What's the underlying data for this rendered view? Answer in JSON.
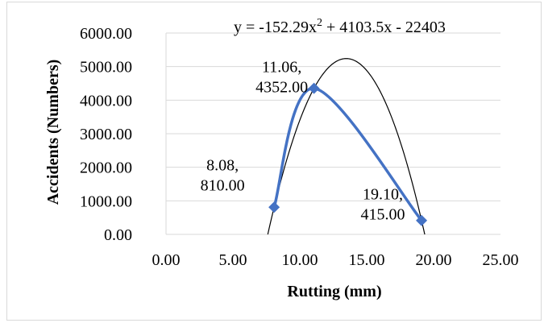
{
  "chart_data": {
    "type": "scatter",
    "title": "",
    "xlabel": "Rutting (mm)",
    "ylabel": "Accidents (Numbers)",
    "xlim": [
      0,
      25
    ],
    "ylim": [
      0,
      6000
    ],
    "x_ticks": [
      "0.00",
      "5.00",
      "10.00",
      "15.00",
      "20.00",
      "25.00"
    ],
    "y_ticks": [
      "0.00",
      "1000.00",
      "2000.00",
      "3000.00",
      "4000.00",
      "5000.00",
      "6000.00"
    ],
    "grid": "horizontal",
    "legend": "none",
    "series": [
      {
        "x": [
          8.08,
          11.06,
          19.1
        ],
        "y": [
          810.0,
          4352.0,
          415.0
        ],
        "marker": "diamond",
        "line": "smooth",
        "color": "#4472c4",
        "data_labels": [
          [
            "8.08,",
            "810.00"
          ],
          [
            "11.06,",
            "4352.00"
          ],
          [
            "19.10,",
            "415.00"
          ]
        ]
      }
    ],
    "trendline": {
      "type": "polynomial",
      "order": 2,
      "coefficients": [
        -152.29,
        4103.5,
        -22403
      ],
      "equation": {
        "prefix": "y = -152.29x",
        "exponent": "2",
        "suffix": " + 4103.5x - 22403"
      },
      "color": "#000000"
    }
  }
}
